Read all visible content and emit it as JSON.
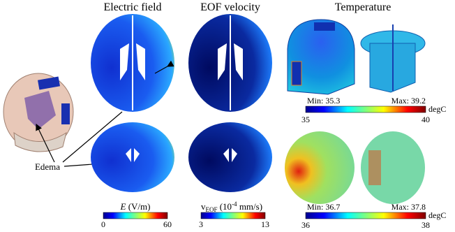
{
  "panels": [
    {
      "title": "Electric field",
      "colorbar": {
        "symbol": "E",
        "subscript": null,
        "unit_open": "(V/m)",
        "exponent": null,
        "unit_close": null,
        "min": 0,
        "max": 60
      }
    },
    {
      "title": "EOF velocity",
      "colorbar": {
        "symbol": "v",
        "subscript": "EOF",
        "unit_open": "(10",
        "exponent": "-4",
        "unit_close": "mm/s)",
        "min": 3,
        "max": 13
      }
    },
    {
      "title": "Temperature",
      "ranges": [
        {
          "min_label": "Min: 35.3",
          "max_label": "Max: 39.2",
          "unit": "degC",
          "min": 35,
          "max": 40
        },
        {
          "min_label": "Min: 36.7",
          "max_label": "Max: 37.8",
          "unit": "degC",
          "min": 36,
          "max": 38
        }
      ]
    }
  ],
  "annotation": "Edema"
}
